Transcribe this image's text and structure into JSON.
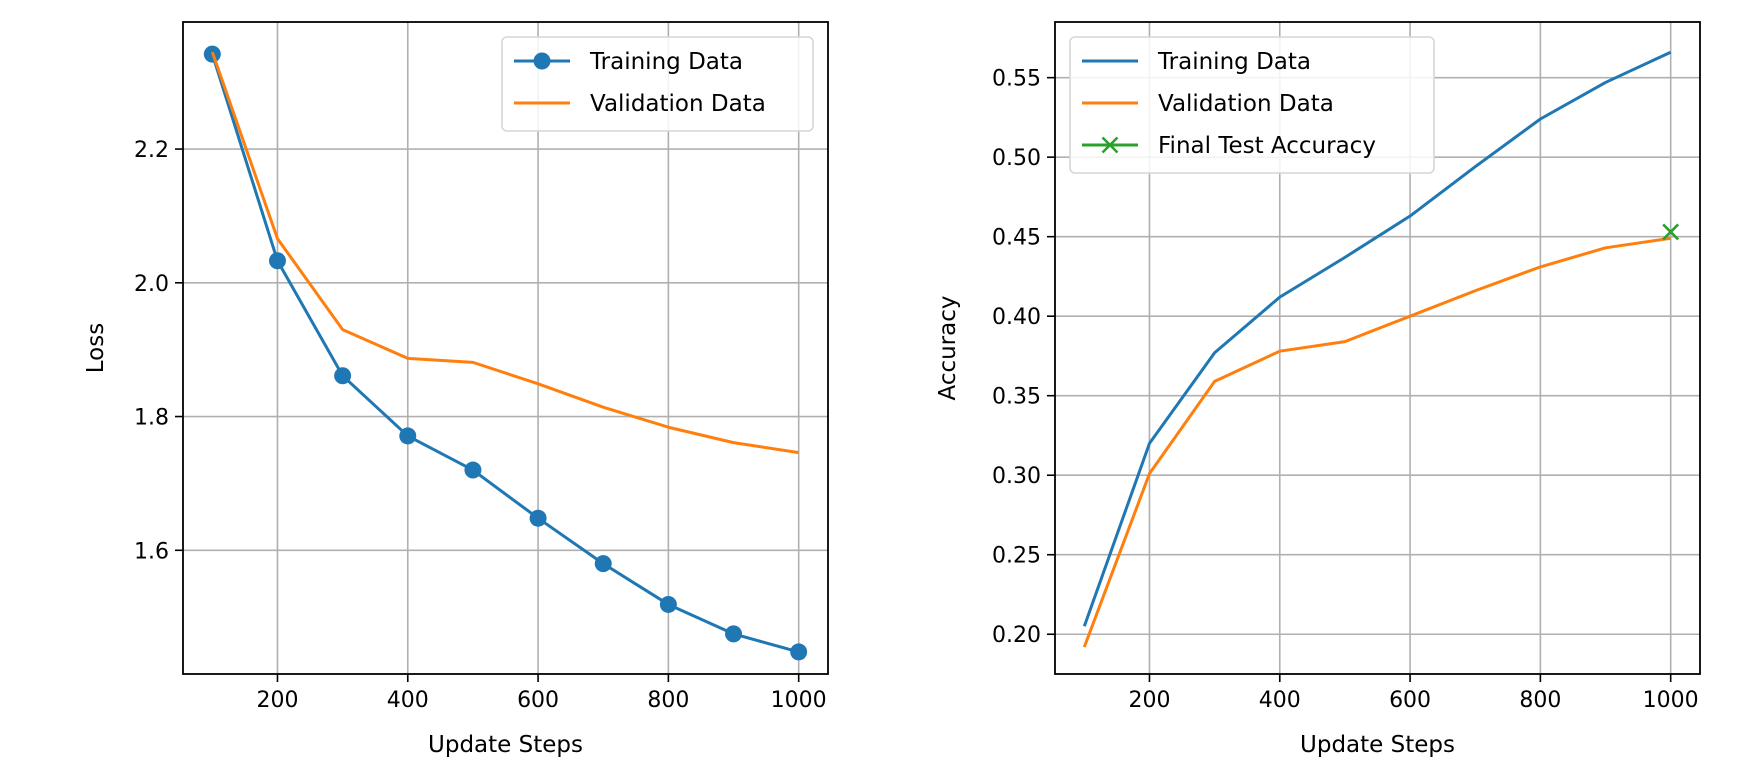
{
  "chart_data": [
    {
      "type": "line",
      "title": "",
      "xlabel": "Update Steps",
      "ylabel": "Loss",
      "xlim": [
        55,
        1045
      ],
      "ylim": [
        1.415,
        2.39
      ],
      "xticks": [
        200,
        400,
        600,
        800,
        1000
      ],
      "yticks": [
        1.6,
        1.8,
        2.0,
        2.2
      ],
      "xtick_labels": [
        "200",
        "400",
        "600",
        "800",
        "1000"
      ],
      "ytick_labels": [
        "1.6",
        "1.8",
        "2.0",
        "2.2"
      ],
      "grid": true,
      "legend_position": "top-right",
      "series": [
        {
          "name": "Training Data",
          "color": "#1f77b4",
          "marker": "circle",
          "x": [
            100,
            200,
            300,
            400,
            500,
            600,
            700,
            800,
            900,
            1000
          ],
          "y": [
            2.342,
            2.033,
            1.861,
            1.771,
            1.72,
            1.648,
            1.58,
            1.519,
            1.475,
            1.448
          ]
        },
        {
          "name": "Validation Data",
          "color": "#ff7f0e",
          "marker": "none",
          "x": [
            100,
            200,
            300,
            400,
            500,
            600,
            700,
            800,
            900,
            1000
          ],
          "y": [
            2.345,
            2.066,
            1.93,
            1.887,
            1.881,
            1.849,
            1.814,
            1.784,
            1.761,
            1.746
          ]
        }
      ]
    },
    {
      "type": "line",
      "title": "",
      "xlabel": "Update Steps",
      "ylabel": "Accuracy",
      "xlim": [
        55,
        1045
      ],
      "ylim": [
        0.175,
        0.585
      ],
      "xticks": [
        200,
        400,
        600,
        800,
        1000
      ],
      "yticks": [
        0.2,
        0.25,
        0.3,
        0.35,
        0.4,
        0.45,
        0.5,
        0.55
      ],
      "xtick_labels": [
        "200",
        "400",
        "600",
        "800",
        "1000"
      ],
      "ytick_labels": [
        "0.20",
        "0.25",
        "0.30",
        "0.35",
        "0.40",
        "0.45",
        "0.50",
        "0.55"
      ],
      "grid": true,
      "legend_position": "top-left",
      "series": [
        {
          "name": "Training Data",
          "color": "#1f77b4",
          "marker": "none",
          "x": [
            100,
            200,
            300,
            400,
            500,
            600,
            700,
            800,
            900,
            1000
          ],
          "y": [
            0.205,
            0.32,
            0.377,
            0.412,
            0.437,
            0.463,
            0.494,
            0.524,
            0.547,
            0.566
          ]
        },
        {
          "name": "Validation Data",
          "color": "#ff7f0e",
          "marker": "none",
          "x": [
            100,
            200,
            300,
            400,
            500,
            600,
            700,
            800,
            900,
            1000
          ],
          "y": [
            0.192,
            0.301,
            0.359,
            0.378,
            0.384,
            0.4,
            0.416,
            0.431,
            0.443,
            0.449
          ]
        },
        {
          "name": "Final Test Accuracy",
          "color": "#2ca02c",
          "marker": "x",
          "x": [
            1000
          ],
          "y": [
            0.453
          ]
        }
      ]
    }
  ]
}
